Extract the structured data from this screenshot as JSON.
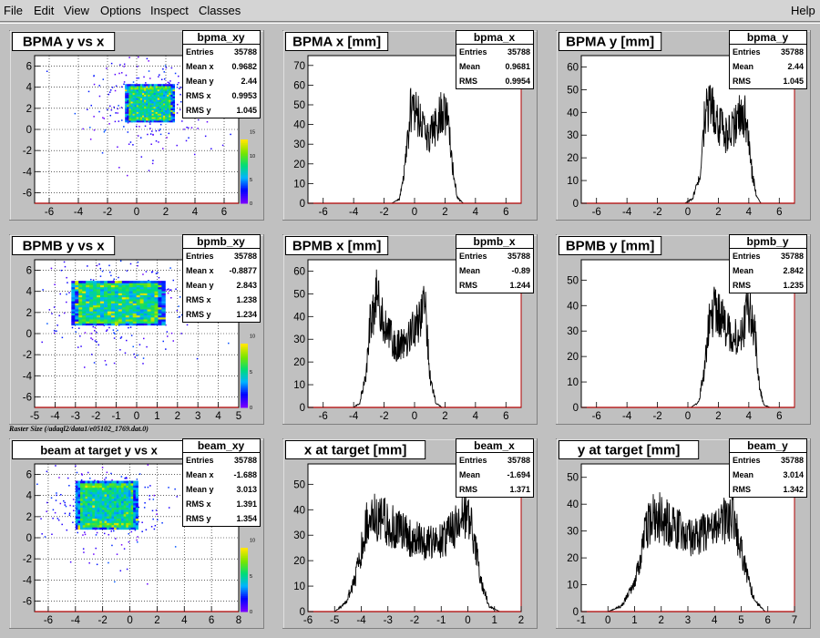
{
  "menubar": {
    "items": [
      "File",
      "Edit",
      "View",
      "Options",
      "Inspect",
      "Classes"
    ],
    "help": "Help"
  },
  "caption": "Raster Size (/adaql2/data1/e05102_1769.dat.0)",
  "chart_data": [
    {
      "id": "bpma_xy",
      "type": "heatmap",
      "title": "BPMA y vs x",
      "stats_name": "bpma_xy",
      "xlim": [
        -7,
        7
      ],
      "ylim": [
        -7,
        7
      ],
      "xticks": [
        -6,
        -4,
        -2,
        0,
        2,
        4,
        6
      ],
      "yticks": [
        -6,
        -4,
        -2,
        0,
        2,
        4,
        6
      ],
      "zticks": [
        0,
        5,
        10,
        15
      ],
      "stats": [
        [
          "Entries",
          "35788"
        ],
        [
          "Mean x",
          "0.9682"
        ],
        [
          "Mean y",
          "2.44"
        ],
        [
          "RMS x",
          "0.9953"
        ],
        [
          "RMS y",
          "1.045"
        ]
      ],
      "box": [
        -0.8,
        2.6,
        0.7,
        4.3
      ],
      "grid": true
    },
    {
      "id": "bpma_x",
      "type": "bar",
      "title": "BPMA x [mm]",
      "stats_name": "bpma_x",
      "xlim": [
        -7,
        7
      ],
      "ylim": [
        0,
        75
      ],
      "xticks": [
        -6,
        -4,
        -2,
        0,
        2,
        4,
        6
      ],
      "yticks": [
        0,
        10,
        20,
        30,
        40,
        50,
        60,
        70
      ],
      "stats": [
        [
          "Entries",
          "35788"
        ],
        [
          "Mean",
          "0.9681"
        ],
        [
          "RMS",
          "0.9954"
        ]
      ],
      "profile": [
        [
          -1.5,
          0
        ],
        [
          -1.0,
          2
        ],
        [
          -0.6,
          20
        ],
        [
          -0.3,
          45
        ],
        [
          -0.1,
          52
        ],
        [
          0.3,
          42
        ],
        [
          0.8,
          35
        ],
        [
          1.3,
          38
        ],
        [
          1.9,
          48
        ],
        [
          2.2,
          40
        ],
        [
          2.5,
          18
        ],
        [
          2.8,
          3
        ],
        [
          3.2,
          0
        ]
      ],
      "grid": false
    },
    {
      "id": "bpma_y",
      "type": "bar",
      "title": "BPMA y [mm]",
      "stats_name": "bpma_y",
      "xlim": [
        -7,
        7
      ],
      "ylim": [
        0,
        65
      ],
      "xticks": [
        -6,
        -4,
        -2,
        0,
        2,
        4,
        6
      ],
      "yticks": [
        0,
        10,
        20,
        30,
        40,
        50,
        60
      ],
      "stats": [
        [
          "Entries",
          "35788"
        ],
        [
          "Mean",
          "2.44"
        ],
        [
          "RMS",
          "1.045"
        ]
      ],
      "profile": [
        [
          -0.2,
          0
        ],
        [
          0.3,
          2
        ],
        [
          0.8,
          12
        ],
        [
          1.1,
          38
        ],
        [
          1.5,
          46
        ],
        [
          1.9,
          37
        ],
        [
          2.4,
          30
        ],
        [
          2.9,
          32
        ],
        [
          3.4,
          38
        ],
        [
          3.8,
          38
        ],
        [
          4.2,
          14
        ],
        [
          4.5,
          3
        ],
        [
          4.8,
          0
        ]
      ],
      "grid": false
    },
    {
      "id": "bpmb_xy",
      "type": "heatmap",
      "title": "BPMB y vs x",
      "stats_name": "bpmb_xy",
      "xlim": [
        -5,
        5
      ],
      "ylim": [
        -7,
        7
      ],
      "xticks": [
        -5,
        -4,
        -3,
        -2,
        -1,
        0,
        1,
        2,
        3,
        4,
        5
      ],
      "yticks": [
        -6,
        -4,
        -2,
        0,
        2,
        4,
        6
      ],
      "zticks": [
        0,
        5,
        10
      ],
      "stats": [
        [
          "Entries",
          "35788"
        ],
        [
          "Mean x",
          "-0.8877"
        ],
        [
          "Mean y",
          "2.843"
        ],
        [
          "RMS x",
          "1.238"
        ],
        [
          "RMS y",
          "1.234"
        ]
      ],
      "box": [
        -3.2,
        1.4,
        0.8,
        5.0
      ],
      "grid": true
    },
    {
      "id": "bpmb_x",
      "type": "bar",
      "title": "BPMB x [mm]",
      "stats_name": "bpmb_x",
      "xlim": [
        -7,
        7
      ],
      "ylim": [
        0,
        65
      ],
      "xticks": [
        -6,
        -4,
        -2,
        0,
        2,
        4,
        6
      ],
      "yticks": [
        0,
        10,
        20,
        30,
        40,
        50,
        60
      ],
      "stats": [
        [
          "Entries",
          "35788"
        ],
        [
          "Mean",
          "-0.89"
        ],
        [
          "RMS",
          "1.244"
        ]
      ],
      "profile": [
        [
          -4.0,
          0
        ],
        [
          -3.6,
          2
        ],
        [
          -3.2,
          15
        ],
        [
          -2.9,
          38
        ],
        [
          -2.5,
          48
        ],
        [
          -2.0,
          35
        ],
        [
          -1.2,
          27
        ],
        [
          -0.5,
          30
        ],
        [
          0.2,
          38
        ],
        [
          0.7,
          44
        ],
        [
          1.0,
          14
        ],
        [
          1.4,
          2
        ],
        [
          1.8,
          0
        ]
      ],
      "grid": false
    },
    {
      "id": "bpmb_y",
      "type": "bar",
      "title": "BPMB y [mm]",
      "stats_name": "bpmb_y",
      "xlim": [
        -7,
        7
      ],
      "ylim": [
        0,
        58
      ],
      "xticks": [
        -6,
        -4,
        -2,
        0,
        2,
        4,
        6
      ],
      "yticks": [
        0,
        10,
        20,
        30,
        40,
        50
      ],
      "stats": [
        [
          "Entries",
          "35788"
        ],
        [
          "Mean",
          "2.842"
        ],
        [
          "RMS",
          "1.235"
        ]
      ],
      "profile": [
        [
          0.2,
          0
        ],
        [
          0.7,
          2
        ],
        [
          1.1,
          15
        ],
        [
          1.4,
          34
        ],
        [
          1.8,
          40
        ],
        [
          2.4,
          32
        ],
        [
          3.0,
          27
        ],
        [
          3.6,
          31
        ],
        [
          4.0,
          38
        ],
        [
          4.4,
          30
        ],
        [
          4.7,
          8
        ],
        [
          5.0,
          1
        ],
        [
          5.4,
          0
        ]
      ],
      "grid": false
    },
    {
      "id": "beam_xy",
      "type": "heatmap",
      "title": "beam at target y vs x",
      "stats_name": "beam_xy",
      "xlim": [
        -7,
        8
      ],
      "ylim": [
        -7,
        7
      ],
      "xticks": [
        -6,
        -4,
        -2,
        0,
        2,
        4,
        6,
        8
      ],
      "yticks": [
        -6,
        -4,
        -2,
        0,
        2,
        4,
        6
      ],
      "zticks": [
        0,
        5,
        10
      ],
      "stats": [
        [
          "Entries",
          "35788"
        ],
        [
          "Mean x",
          "-1.688"
        ],
        [
          "Mean y",
          "3.013"
        ],
        [
          "RMS x",
          "1.391"
        ],
        [
          "RMS y",
          "1.354"
        ]
      ],
      "box": [
        -4.0,
        0.6,
        0.8,
        5.4
      ],
      "grid": true
    },
    {
      "id": "beam_x",
      "type": "bar",
      "title": "x at target [mm]",
      "stats_name": "beam_x",
      "xlim": [
        -6,
        2
      ],
      "ylim": [
        0,
        58
      ],
      "xticks": [
        -6,
        -5,
        -4,
        -3,
        -2,
        -1,
        0,
        1,
        2
      ],
      "yticks": [
        0,
        10,
        20,
        30,
        40,
        50
      ],
      "stats": [
        [
          "Entries",
          "35788"
        ],
        [
          "Mean",
          "-1.694"
        ],
        [
          "RMS",
          "1.371"
        ]
      ],
      "profile": [
        [
          -5.0,
          0
        ],
        [
          -4.6,
          3
        ],
        [
          -4.2,
          14
        ],
        [
          -3.8,
          35
        ],
        [
          -3.4,
          37
        ],
        [
          -2.8,
          33
        ],
        [
          -2.0,
          28
        ],
        [
          -1.2,
          27
        ],
        [
          -0.6,
          31
        ],
        [
          -0.1,
          38
        ],
        [
          0.2,
          32
        ],
        [
          0.5,
          12
        ],
        [
          0.8,
          2
        ],
        [
          1.2,
          0
        ]
      ],
      "grid": false
    },
    {
      "id": "beam_y",
      "type": "bar",
      "title": "y at target [mm]",
      "stats_name": "beam_y",
      "xlim": [
        -1,
        7
      ],
      "ylim": [
        0,
        55
      ],
      "xticks": [
        -1,
        0,
        1,
        2,
        3,
        4,
        5,
        6,
        7
      ],
      "yticks": [
        0,
        10,
        20,
        30,
        40,
        50
      ],
      "stats": [
        [
          "Entries",
          "35788"
        ],
        [
          "Mean",
          "3.014"
        ],
        [
          "RMS",
          "1.342"
        ]
      ],
      "profile": [
        [
          0.0,
          0
        ],
        [
          0.5,
          2
        ],
        [
          1.0,
          10
        ],
        [
          1.4,
          30
        ],
        [
          1.8,
          36
        ],
        [
          2.4,
          32
        ],
        [
          3.0,
          28
        ],
        [
          3.6,
          29
        ],
        [
          4.2,
          33
        ],
        [
          4.7,
          36
        ],
        [
          5.1,
          18
        ],
        [
          5.5,
          4
        ],
        [
          5.9,
          0
        ]
      ],
      "grid": false
    }
  ]
}
